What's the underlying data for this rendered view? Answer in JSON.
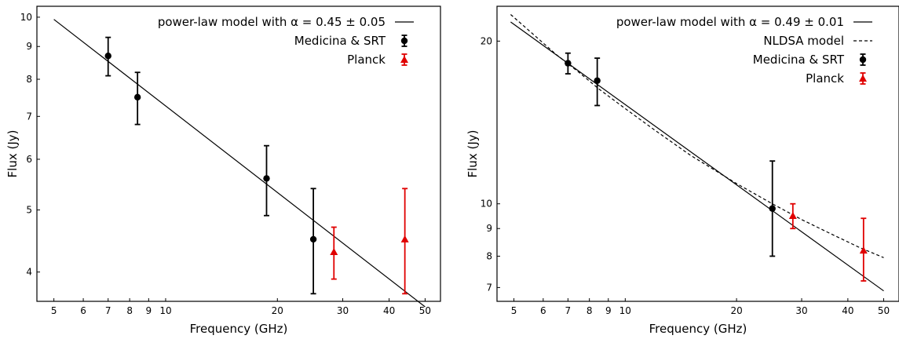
{
  "chart_data": [
    {
      "type": "scatter",
      "xscale": "log",
      "yscale": "log",
      "xlim": [
        4.5,
        55
      ],
      "ylim": [
        3.6,
        10.4
      ],
      "xlabel": "Frequency (GHz)",
      "ylabel": "Flux (Jy)",
      "xticks": [
        5,
        6,
        7,
        8,
        9,
        10,
        20,
        30,
        40,
        50
      ],
      "xticklabels": [
        "5",
        "6",
        "7",
        "8",
        "9",
        "10",
        "20",
        "30",
        "40",
        "50"
      ],
      "yticks": [
        4,
        5,
        6,
        7,
        8,
        9,
        10
      ],
      "yticklabels": [
        "4",
        "5",
        "6",
        "7",
        "8",
        "9",
        "10"
      ],
      "legend": "top-right",
      "series": [
        {
          "name": "power-law model  with α = 0.45 ± 0.05",
          "kind": "line",
          "style": "solid",
          "color": "#000000",
          "x": [
            5,
            50
          ],
          "y": [
            9.92,
            3.53
          ]
        },
        {
          "name": "Medicina & SRT",
          "kind": "errorbar",
          "marker": "circle",
          "color": "#000000",
          "x": [
            7.0,
            8.4,
            18.7,
            25.0
          ],
          "y": [
            8.7,
            7.5,
            5.6,
            4.5
          ],
          "yerr_low": [
            8.1,
            6.8,
            4.9,
            3.7
          ],
          "yerr_high": [
            9.3,
            8.2,
            6.3,
            5.4
          ]
        },
        {
          "name": "Planck",
          "kind": "errorbar",
          "marker": "triangle",
          "color": "#e00000",
          "x": [
            28.4,
            44.1
          ],
          "y": [
            4.3,
            4.5
          ],
          "yerr_low": [
            3.9,
            3.7
          ],
          "yerr_high": [
            4.7,
            5.4
          ]
        }
      ]
    },
    {
      "type": "scatter",
      "xscale": "log",
      "yscale": "log",
      "xlim": [
        4.5,
        55
      ],
      "ylim": [
        6.6,
        23.2
      ],
      "xlabel": "Frequency (GHz)",
      "ylabel": "Flux (Jy)",
      "xticks": [
        5,
        6,
        7,
        8,
        9,
        10,
        20,
        30,
        40,
        50
      ],
      "xticklabels": [
        "5",
        "6",
        "7",
        "8",
        "9",
        "10",
        "20",
        "30",
        "40",
        "50"
      ],
      "yticks": [
        7,
        8,
        9,
        10,
        20
      ],
      "yticklabels": [
        "7",
        "8",
        "9",
        "10",
        "20"
      ],
      "legend": "top-right",
      "series": [
        {
          "name": "power-law model  with α = 0.49 ± 0.01",
          "kind": "line",
          "style": "solid",
          "color": "#000000",
          "x": [
            4.9,
            50
          ],
          "y": [
            21.7,
            6.9
          ]
        },
        {
          "name": "NLDSA model",
          "kind": "line",
          "style": "dashed",
          "color": "#000000",
          "x": [
            4.9,
            5.5,
            6.5,
            7.5,
            8.5,
            10,
            12,
            15,
            20,
            25,
            30,
            36,
            43,
            50
          ],
          "y": [
            22.4,
            20.9,
            18.9,
            17.5,
            16.3,
            15.0,
            13.7,
            12.3,
            10.9,
            10.0,
            9.35,
            8.8,
            8.3,
            7.95
          ]
        },
        {
          "name": "Medicina & SRT",
          "kind": "errorbar",
          "marker": "circle",
          "color": "#000000",
          "x": [
            7.0,
            8.4,
            25.0
          ],
          "y": [
            18.2,
            16.9,
            9.8
          ],
          "yerr_low": [
            17.4,
            15.2,
            8.0
          ],
          "yerr_high": [
            19.0,
            18.6,
            12.0
          ]
        },
        {
          "name": "Planck",
          "kind": "errorbar",
          "marker": "triangle",
          "color": "#e00000",
          "x": [
            28.4,
            44.1
          ],
          "y": [
            9.5,
            8.2
          ],
          "yerr_low": [
            9.0,
            7.2
          ],
          "yerr_high": [
            10.0,
            9.4
          ]
        }
      ]
    }
  ]
}
